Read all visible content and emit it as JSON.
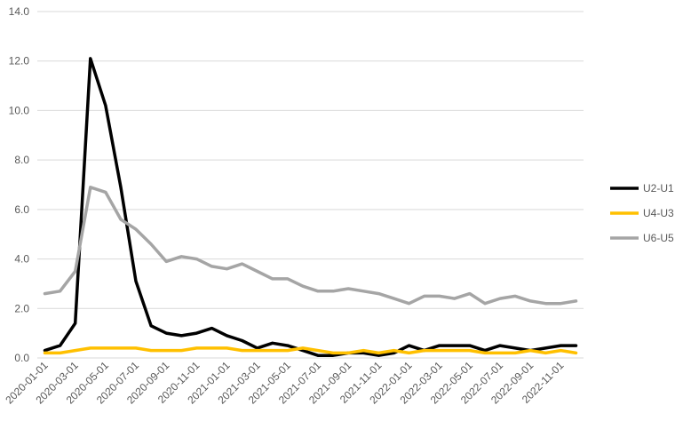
{
  "chart_data": {
    "type": "line",
    "title": "",
    "xlabel": "",
    "ylabel": "",
    "ylim": [
      0,
      14
    ],
    "y_ticks": [
      0,
      2,
      4,
      6,
      8,
      10,
      12,
      14
    ],
    "y_tick_labels": [
      "0.0",
      "2.0",
      "4.0",
      "6.0",
      "8.0",
      "10.0",
      "12.0",
      "14.0"
    ],
    "grid": "horizontal",
    "legend_position": "right",
    "x": [
      "2020-01-01",
      "2020-02-01",
      "2020-03-01",
      "2020-04-01",
      "2020-05-01",
      "2020-06-01",
      "2020-07-01",
      "2020-08-01",
      "2020-09-01",
      "2020-10-01",
      "2020-11-01",
      "2020-12-01",
      "2021-01-01",
      "2021-02-01",
      "2021-03-01",
      "2021-04-01",
      "2021-05-01",
      "2021-06-01",
      "2021-07-01",
      "2021-08-01",
      "2021-09-01",
      "2021-10-01",
      "2021-11-01",
      "2021-12-01",
      "2022-01-01",
      "2022-02-01",
      "2022-03-01",
      "2022-04-01",
      "2022-05-01",
      "2022-06-01",
      "2022-07-01",
      "2022-08-01",
      "2022-09-01",
      "2022-10-01",
      "2022-11-01",
      "2022-12-01"
    ],
    "x_tick_labels": [
      "2020-01-01",
      "2020-03-01",
      "2020-05-01",
      "2020-07-01",
      "2020-09-01",
      "2020-11-01",
      "2021-01-01",
      "2021-03-01",
      "2021-05-01",
      "2021-07-01",
      "2021-09-01",
      "2021-11-01",
      "2022-01-01",
      "2022-03-01",
      "2022-05-01",
      "2022-07-01",
      "2022-09-01",
      "2022-11-01"
    ],
    "series": [
      {
        "name": "U2-U1",
        "color": "#000000",
        "values": [
          0.3,
          0.5,
          1.4,
          12.1,
          10.2,
          6.9,
          3.1,
          1.3,
          1.0,
          0.9,
          1.0,
          1.2,
          0.9,
          0.7,
          0.4,
          0.6,
          0.5,
          0.3,
          0.1,
          0.1,
          0.2,
          0.2,
          0.1,
          0.2,
          0.5,
          0.3,
          0.5,
          0.5,
          0.5,
          0.3,
          0.5,
          0.4,
          0.3,
          0.4,
          0.5,
          0.5
        ]
      },
      {
        "name": "U4-U3",
        "color": "#FFC000",
        "values": [
          0.2,
          0.2,
          0.3,
          0.4,
          0.4,
          0.4,
          0.4,
          0.3,
          0.3,
          0.3,
          0.4,
          0.4,
          0.4,
          0.3,
          0.3,
          0.3,
          0.3,
          0.4,
          0.3,
          0.2,
          0.2,
          0.3,
          0.2,
          0.3,
          0.2,
          0.3,
          0.3,
          0.3,
          0.3,
          0.2,
          0.2,
          0.2,
          0.3,
          0.2,
          0.3,
          0.2
        ]
      },
      {
        "name": "U6-U5",
        "color": "#A5A5A5",
        "values": [
          2.6,
          2.7,
          3.5,
          6.9,
          6.7,
          5.6,
          5.2,
          4.6,
          3.9,
          4.1,
          4.0,
          3.7,
          3.6,
          3.8,
          3.5,
          3.2,
          3.2,
          2.9,
          2.7,
          2.7,
          2.8,
          2.7,
          2.6,
          2.4,
          2.2,
          2.5,
          2.5,
          2.4,
          2.6,
          2.2,
          2.4,
          2.5,
          2.3,
          2.2,
          2.2,
          2.3
        ]
      }
    ]
  }
}
